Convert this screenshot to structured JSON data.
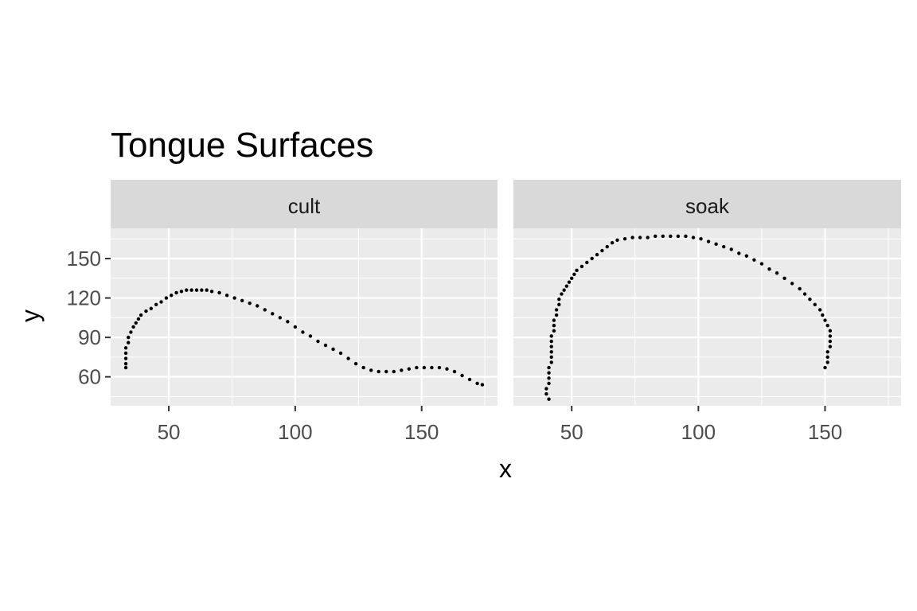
{
  "chart_data": {
    "type": "scatter",
    "title": "Tongue Surfaces",
    "xlabel": "x",
    "ylabel": "y",
    "xlim": [
      27,
      180
    ],
    "ylim": [
      38,
      173
    ],
    "x_ticks": [
      50,
      100,
      150
    ],
    "y_ticks": [
      60,
      90,
      120,
      150
    ],
    "grid": true,
    "colors": {
      "panel_background": "#EBEBEB",
      "strip_background": "#D9D9D9",
      "gridline": "#FFFFFF",
      "point": "#000000"
    },
    "facets": [
      {
        "label": "cult",
        "points": [
          [
            33,
            67
          ],
          [
            33,
            70
          ],
          [
            33,
            74
          ],
          [
            33,
            78
          ],
          [
            33,
            82
          ],
          [
            34,
            86
          ],
          [
            34,
            90
          ],
          [
            35,
            94
          ],
          [
            36,
            98
          ],
          [
            37,
            101
          ],
          [
            38,
            104
          ],
          [
            39,
            107
          ],
          [
            41,
            110
          ],
          [
            43,
            112
          ],
          [
            45,
            115
          ],
          [
            47,
            117
          ],
          [
            49,
            120
          ],
          [
            51,
            122
          ],
          [
            53,
            124
          ],
          [
            55,
            125
          ],
          [
            57,
            126
          ],
          [
            59,
            126
          ],
          [
            61,
            126
          ],
          [
            63,
            126
          ],
          [
            65,
            126
          ],
          [
            67,
            125
          ],
          [
            70,
            124
          ],
          [
            73,
            122
          ],
          [
            76,
            120
          ],
          [
            79,
            118
          ],
          [
            82,
            116
          ],
          [
            85,
            114
          ],
          [
            88,
            111
          ],
          [
            91,
            108
          ],
          [
            94,
            105
          ],
          [
            97,
            102
          ],
          [
            100,
            98
          ],
          [
            103,
            94
          ],
          [
            106,
            91
          ],
          [
            109,
            87
          ],
          [
            112,
            84
          ],
          [
            115,
            81
          ],
          [
            118,
            78
          ],
          [
            121,
            74
          ],
          [
            124,
            70
          ],
          [
            127,
            67
          ],
          [
            130,
            65
          ],
          [
            133,
            64
          ],
          [
            136,
            64
          ],
          [
            139,
            64
          ],
          [
            142,
            65
          ],
          [
            145,
            66
          ],
          [
            148,
            67
          ],
          [
            151,
            67
          ],
          [
            154,
            67
          ],
          [
            157,
            67
          ],
          [
            160,
            66
          ],
          [
            163,
            64
          ],
          [
            166,
            61
          ],
          [
            169,
            58
          ],
          [
            172,
            55
          ],
          [
            174,
            54
          ]
        ]
      },
      {
        "label": "soak",
        "points": [
          [
            41,
            43
          ],
          [
            40,
            47
          ],
          [
            40,
            51
          ],
          [
            41,
            55
          ],
          [
            41,
            59
          ],
          [
            41,
            63
          ],
          [
            41,
            67
          ],
          [
            42,
            71
          ],
          [
            42,
            75
          ],
          [
            42,
            79
          ],
          [
            42,
            83
          ],
          [
            42,
            87
          ],
          [
            42,
            91
          ],
          [
            43,
            95
          ],
          [
            43,
            99
          ],
          [
            43,
            103
          ],
          [
            44,
            107
          ],
          [
            44,
            111
          ],
          [
            45,
            115
          ],
          [
            45,
            119
          ],
          [
            46,
            123
          ],
          [
            47,
            126
          ],
          [
            48,
            129
          ],
          [
            49,
            132
          ],
          [
            50,
            135
          ],
          [
            51,
            138
          ],
          [
            52,
            141
          ],
          [
            54,
            144
          ],
          [
            56,
            147
          ],
          [
            58,
            150
          ],
          [
            60,
            153
          ],
          [
            62,
            156
          ],
          [
            64,
            159
          ],
          [
            66,
            162
          ],
          [
            68,
            164
          ],
          [
            71,
            165
          ],
          [
            74,
            166
          ],
          [
            77,
            166
          ],
          [
            80,
            166
          ],
          [
            83,
            167
          ],
          [
            86,
            167
          ],
          [
            89,
            167
          ],
          [
            92,
            167
          ],
          [
            95,
            167
          ],
          [
            98,
            166
          ],
          [
            101,
            165
          ],
          [
            104,
            163
          ],
          [
            107,
            161
          ],
          [
            110,
            159
          ],
          [
            113,
            157
          ],
          [
            116,
            154
          ],
          [
            119,
            152
          ],
          [
            122,
            149
          ],
          [
            125,
            146
          ],
          [
            128,
            142
          ],
          [
            131,
            139
          ],
          [
            134,
            135
          ],
          [
            137,
            131
          ],
          [
            140,
            127
          ],
          [
            142,
            123
          ],
          [
            144,
            119
          ],
          [
            146,
            115
          ],
          [
            148,
            111
          ],
          [
            149,
            107
          ],
          [
            150,
            103
          ],
          [
            151,
            99
          ],
          [
            152,
            95
          ],
          [
            152,
            91
          ],
          [
            152,
            87
          ],
          [
            152,
            83
          ],
          [
            151,
            79
          ],
          [
            151,
            75
          ],
          [
            151,
            71
          ],
          [
            150,
            67
          ]
        ]
      }
    ]
  }
}
